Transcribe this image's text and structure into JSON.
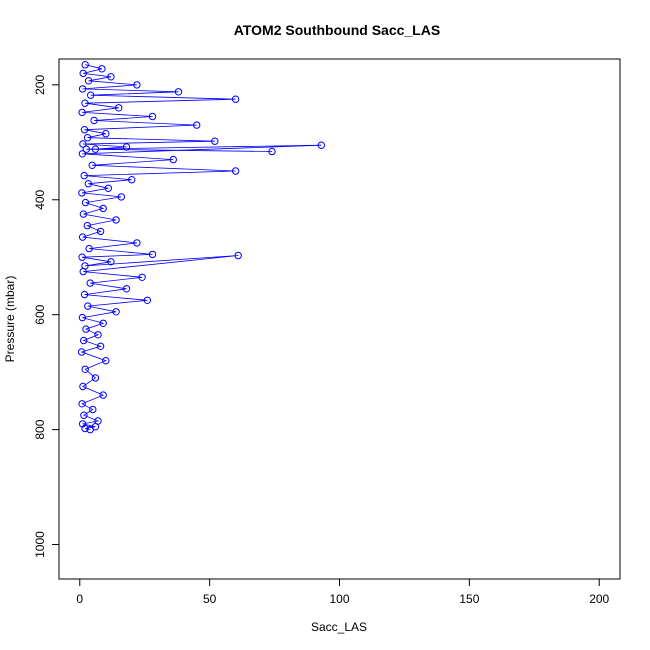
{
  "chart_data": {
    "type": "line",
    "title": "ATOM2 Southbound Sacc_LAS",
    "xlabel": "Sacc_LAS",
    "ylabel": "Pressure (mbar)",
    "xlim": [
      -8,
      208
    ],
    "ylim": [
      1060,
      155
    ],
    "y_reversed": true,
    "x_ticks": [
      0,
      50,
      100,
      150,
      200
    ],
    "y_ticks": [
      200,
      400,
      600,
      800,
      1000
    ],
    "grid": false,
    "legend": "none",
    "series_color": "#0000ff",
    "marker": "open-circle",
    "series": [
      {
        "x": [
          2.1,
          8.5,
          1.3,
          12.0,
          3.4,
          22.0,
          1.1,
          38.0,
          4.2,
          60.0,
          2.0,
          15.0,
          0.9,
          28.0,
          5.5,
          45.0,
          1.8,
          10.0,
          3.0,
          52.0,
          1.2,
          18.0,
          6.0,
          74.0,
          2.5,
          93.0,
          1.0,
          36.0,
          4.8,
          60.0,
          1.7,
          20.0,
          3.3,
          11.0,
          0.8,
          16.0,
          2.2,
          9.0,
          1.4,
          14.0,
          2.9,
          8.0,
          1.1,
          22.0,
          3.6,
          28.0,
          0.9,
          12.0,
          2.0,
          61.0,
          1.3,
          24.0,
          4.0,
          18.0,
          1.8,
          26.0,
          3.1,
          14.0,
          1.0,
          9.0,
          2.4,
          7.0,
          1.5,
          8.0,
          0.7,
          10.0,
          2.1,
          6.0,
          1.2,
          9.0,
          0.9,
          5.0,
          1.6,
          7.0,
          1.1,
          6.0,
          2.0,
          4.0
        ],
        "y": [
          165,
          172,
          180,
          186,
          193,
          200,
          207,
          212,
          218,
          225,
          232,
          240,
          248,
          255,
          262,
          270,
          278,
          285,
          292,
          298,
          303,
          308,
          312,
          316,
          312,
          305,
          320,
          330,
          340,
          350,
          358,
          365,
          372,
          380,
          388,
          395,
          405,
          415,
          425,
          435,
          445,
          455,
          465,
          475,
          485,
          495,
          500,
          508,
          515,
          497,
          525,
          535,
          545,
          555,
          565,
          575,
          585,
          595,
          605,
          615,
          625,
          635,
          645,
          655,
          665,
          680,
          695,
          710,
          725,
          740,
          755,
          765,
          775,
          785,
          790,
          795,
          798,
          800
        ]
      }
    ]
  }
}
